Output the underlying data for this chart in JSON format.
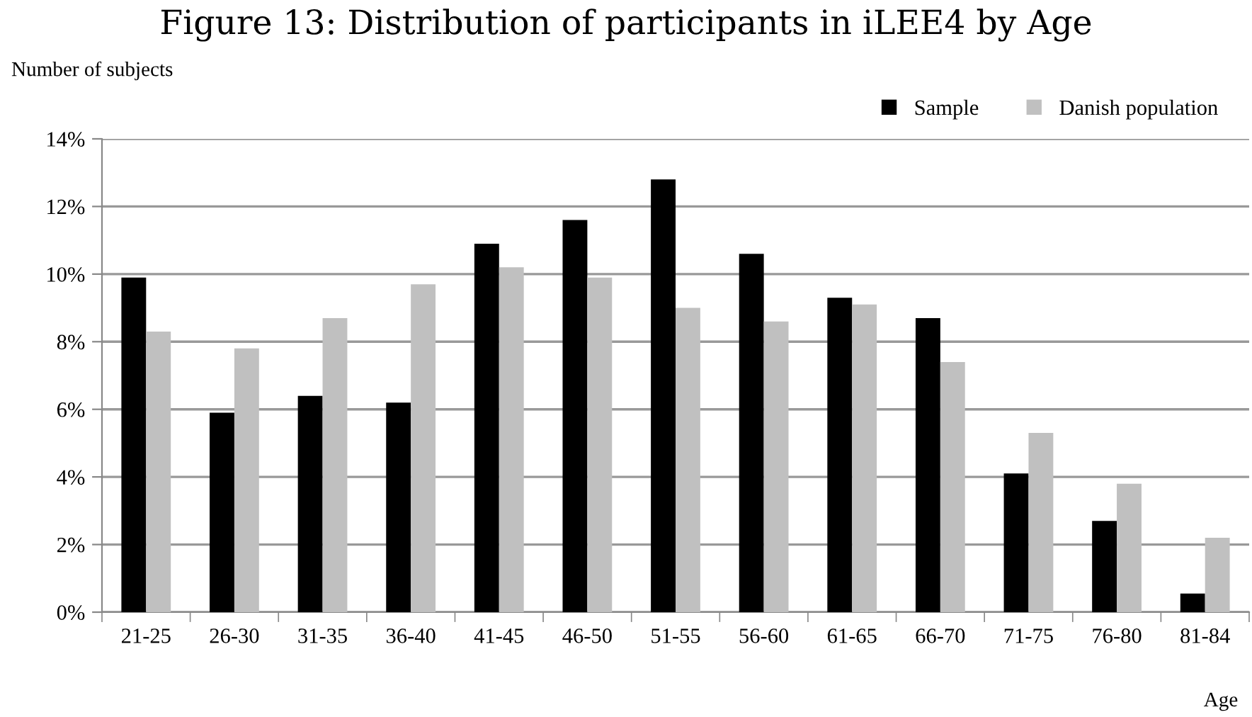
{
  "chart_data": {
    "type": "bar",
    "title": "Figure 13: Distribution of participants in iLEE4 by Age",
    "ylabel": "Number of subjects",
    "xlabel": "Age",
    "categories": [
      "21-25",
      "26-30",
      "31-35",
      "36-40",
      "41-45",
      "46-50",
      "51-55",
      "56-60",
      "61-65",
      "66-70",
      "71-75",
      "76-80",
      "81-84"
    ],
    "series": [
      {
        "name": "Sample",
        "color": "#000000",
        "values": [
          9.9,
          5.9,
          6.4,
          6.2,
          10.9,
          11.6,
          12.8,
          10.6,
          9.3,
          8.7,
          4.1,
          2.7,
          0.55
        ]
      },
      {
        "name": "Danish population",
        "color": "#c0c0c0",
        "values": [
          8.3,
          7.8,
          8.7,
          9.7,
          10.2,
          9.9,
          9.0,
          8.6,
          9.1,
          7.4,
          5.3,
          3.8,
          2.2
        ]
      }
    ],
    "ylim": [
      0,
      14
    ],
    "yticks": [
      {
        "value": 0,
        "label": "0%"
      },
      {
        "value": 2,
        "label": "2%"
      },
      {
        "value": 4,
        "label": "4%"
      },
      {
        "value": 6,
        "label": "6%"
      },
      {
        "value": 8,
        "label": "8%"
      },
      {
        "value": 10,
        "label": "10%"
      },
      {
        "value": 12,
        "label": "12%"
      },
      {
        "value": 14,
        "label": "14%"
      }
    ],
    "grid": "y",
    "legend": "top right"
  }
}
